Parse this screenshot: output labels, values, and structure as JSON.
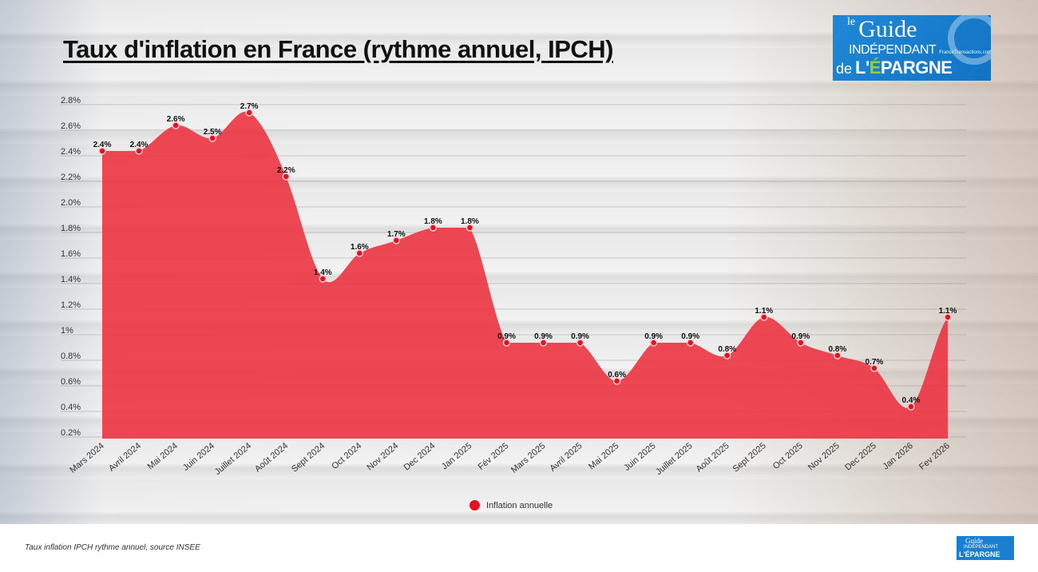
{
  "title": "Taux d'inflation en France (rythme annuel, IPCH)",
  "logo": {
    "le": "le",
    "guide": "Guide",
    "independant": "INDÉPENDANT",
    "de": "de",
    "epargne_pre": "L'",
    "epargne_e": "É",
    "epargne_post": "PARGNE",
    "site": "FranceTransactions.com"
  },
  "footer": {
    "source": "Taux inflation IPCH rythme annuel, source INSEE"
  },
  "colors": {
    "area": "#ec3442",
    "marker": "#e8101e"
  },
  "chart_data": {
    "type": "area",
    "title": "Taux d'inflation en France (rythme annuel, IPCH)",
    "categories": [
      "Mars 2024",
      "Avril 2024",
      "Mai 2024",
      "Juin 2024",
      "Juillet 2024",
      "Août 2024",
      "Sept 2024",
      "Oct 2024",
      "Nov 2024",
      "Dec 2024",
      "Jan 2025",
      "Fév 2025",
      "Mars 2025",
      "Avril 2025",
      "Mai 2025",
      "Juin 2025",
      "Juillet 2025",
      "Août 2025",
      "Sept 2025",
      "Oct 2025",
      "Nov 2025",
      "Dec 2025",
      "Jan 2026",
      "Fev 2026"
    ],
    "series": [
      {
        "name": "Inflation annuelle",
        "values": [
          2.4,
          2.4,
          2.6,
          2.5,
          2.7,
          2.2,
          1.4,
          1.6,
          1.7,
          1.8,
          1.8,
          0.9,
          0.9,
          0.9,
          0.6,
          0.9,
          0.9,
          0.8,
          1.1,
          0.9,
          0.8,
          0.7,
          0.4,
          1.1
        ]
      }
    ],
    "data_labels": [
      "2.4%",
      "2.4%",
      "2.6%",
      "2.5%",
      "2.7%",
      "2.2%",
      "1.4%",
      "1.6%",
      "1.7%",
      "1.8%",
      "1.8%",
      "0.9%",
      "0.9%",
      "0.9%",
      "0.6%",
      "0.9%",
      "0.9%",
      "0.8%",
      "1.1%",
      "0.9%",
      "0.8%",
      "0.7%",
      "0.4%",
      "1.1%"
    ],
    "yticks": [
      "2.8%",
      "2.6%",
      "2.4%",
      "2.2%",
      "2.0%",
      "1.8%",
      "1.6%",
      "1.4%",
      "1.2%",
      "1%",
      "0.8%",
      "0.6%",
      "0.4%",
      "0.2%"
    ],
    "ytick_values": [
      2.8,
      2.6,
      2.4,
      2.2,
      2.0,
      1.8,
      1.6,
      1.4,
      1.2,
      1.0,
      0.8,
      0.6,
      0.4,
      0.2
    ],
    "ylim": [
      0.15,
      2.8
    ],
    "xlabel": "",
    "ylabel": "",
    "grid": true,
    "legend": {
      "position": "bottom",
      "label": "Inflation annuelle"
    }
  }
}
